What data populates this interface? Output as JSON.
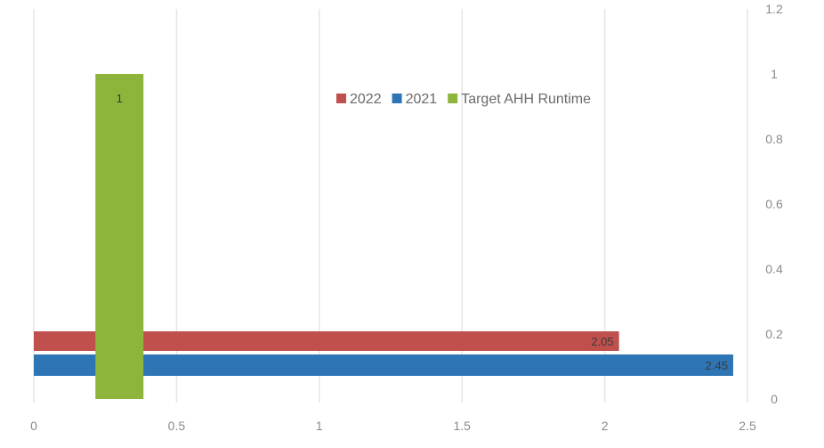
{
  "chart_data": {
    "type": "bar",
    "orientation": "horizontal-with-vertical-secondary",
    "x_axis": {
      "ticks": [
        0,
        0.5,
        1,
        1.5,
        2,
        2.5
      ],
      "tick_labels": [
        "0",
        "0.5",
        "1",
        "1.5",
        "2",
        "2.5"
      ],
      "range": [
        0,
        2.5
      ]
    },
    "y2_axis": {
      "side": "right",
      "ticks": [
        0,
        0.2,
        0.4,
        0.6,
        0.8,
        1,
        1.2
      ],
      "tick_labels": [
        "0",
        "0.2",
        "0.4",
        "0.6",
        "0.8",
        "1",
        "1.2"
      ],
      "range": [
        0,
        1.2
      ]
    },
    "series": [
      {
        "name": "2022",
        "color": "#c0504d",
        "value": 2.05,
        "label": "2.05"
      },
      {
        "name": "2021",
        "color": "#2e75b6",
        "value": 2.45,
        "label": "2.45"
      },
      {
        "name": "Target AHH Runtime",
        "color": "#8db43b",
        "value": 1,
        "label": "1",
        "x_position": 0.3
      }
    ],
    "legend": {
      "placement": "top-right",
      "entries": [
        "2022",
        "2021",
        "Target AHH Runtime"
      ]
    },
    "grid": {
      "vertical": true,
      "horizontal": false
    },
    "title": "",
    "xlabel": "",
    "ylabel": ""
  }
}
